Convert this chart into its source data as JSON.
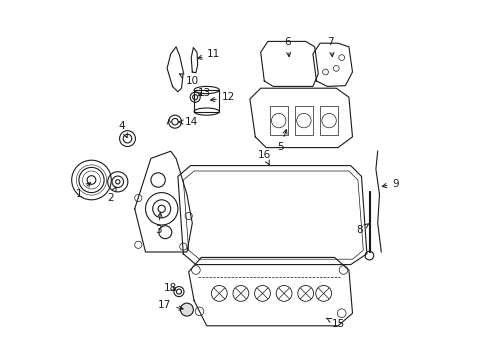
{
  "title": "",
  "bg_color": "#ffffff",
  "line_color": "#1a1a1a",
  "figsize": [
    4.89,
    3.6
  ],
  "dpi": 100
}
